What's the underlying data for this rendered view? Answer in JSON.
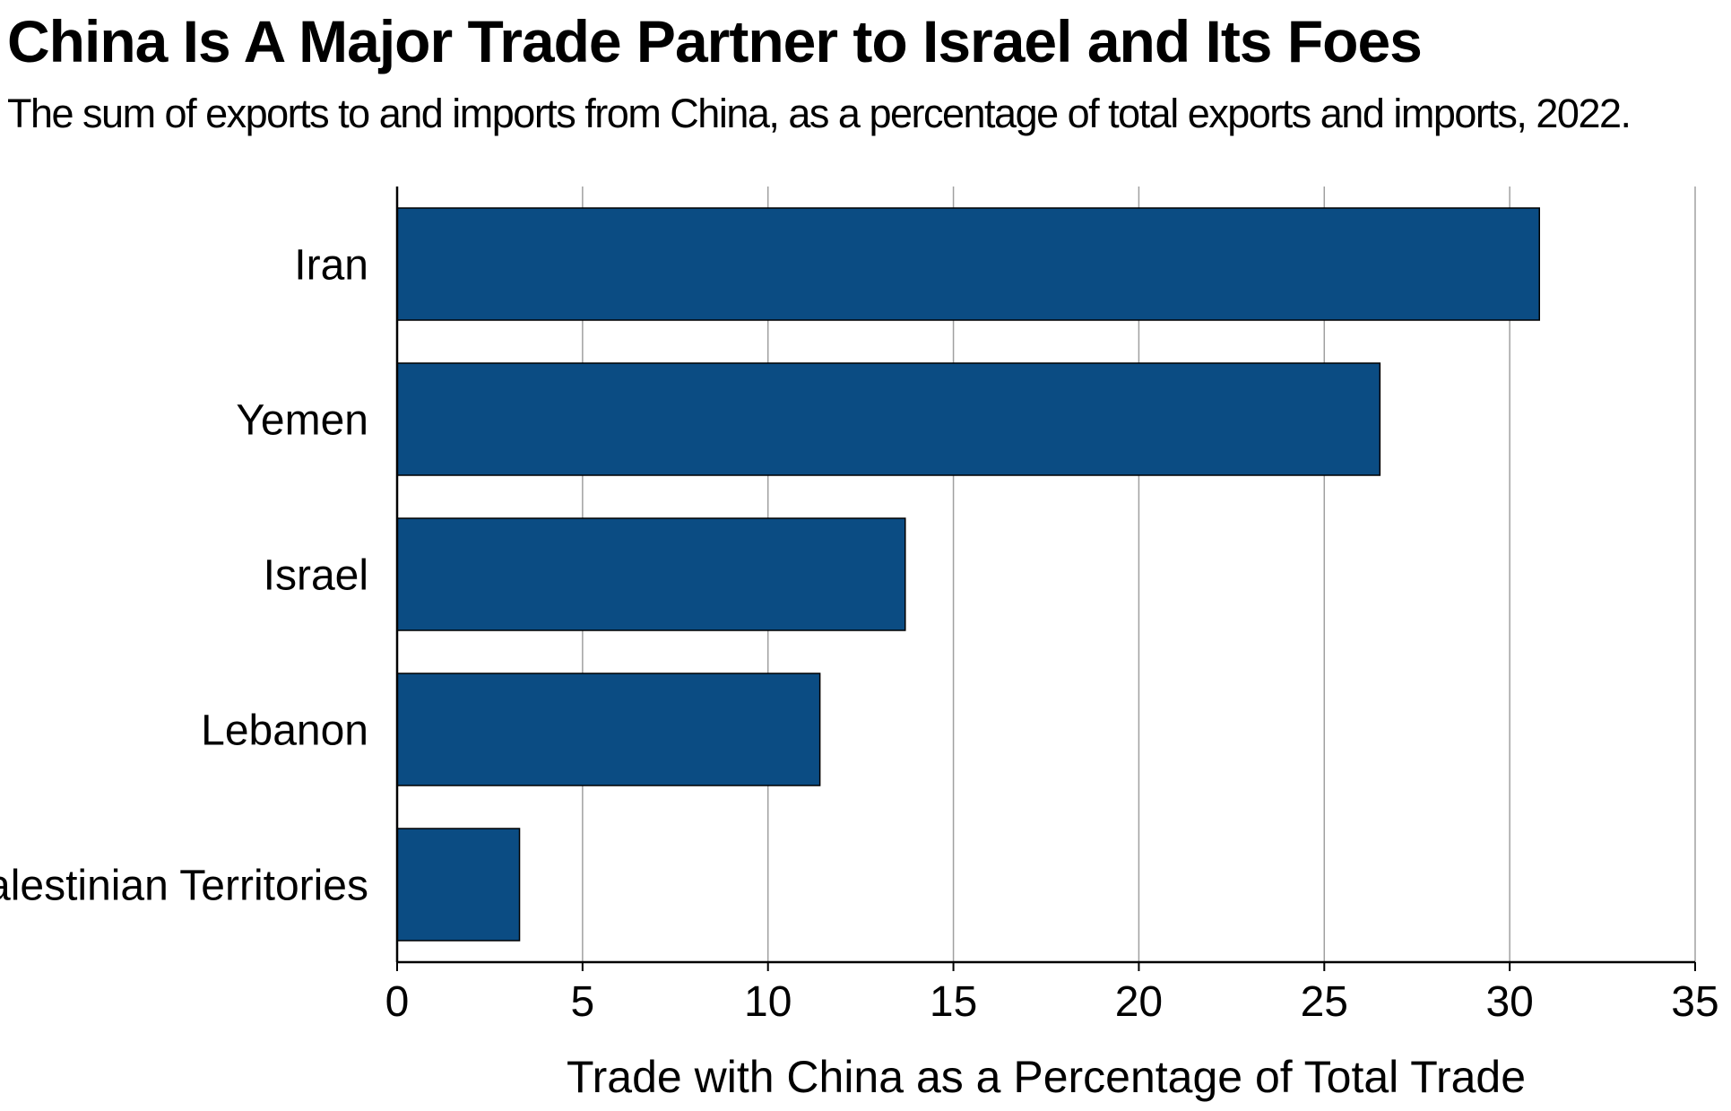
{
  "chart_data": {
    "type": "bar",
    "orientation": "horizontal",
    "title": "China Is A Major Trade Partner to Israel and Its Foes",
    "subtitle": "The sum of exports to and imports from China, as a percentage of total exports and imports, 2022.",
    "categories": [
      "Iran",
      "Yemen",
      "Israel",
      "Lebanon",
      "Palestinian Territories"
    ],
    "values": [
      30.8,
      26.5,
      13.7,
      11.4,
      3.3
    ],
    "xlabel": "Trade with China as a Percentage of Total Trade",
    "ylabel": "",
    "xlim": [
      0,
      35
    ],
    "xticks": [
      0,
      5,
      10,
      15,
      20,
      25,
      30,
      35
    ],
    "grid": "vertical",
    "legend": "none",
    "bar_color": "#0b4c83",
    "bar_edge_color": "#000000",
    "grid_color": "#a0a0a0"
  }
}
